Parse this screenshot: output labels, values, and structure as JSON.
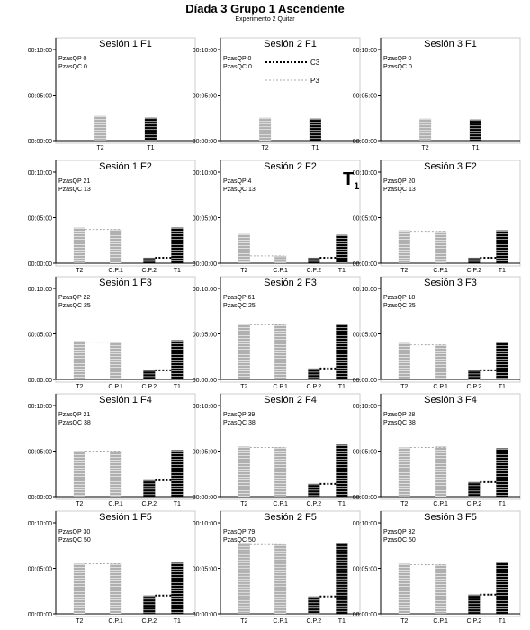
{
  "figure": {
    "title": "Díada 3 Grupo 1 Ascendente",
    "subtitle": "Experimento 2 Quitar",
    "corner_label": {
      "main": "T",
      "sub": "1"
    },
    "y_ticks": [
      "00:00:00",
      "00:05:00",
      "00:10:00"
    ],
    "legend": [
      {
        "label": "C3",
        "color": "#000000",
        "style": "dotted-bold"
      },
      {
        "label": "P3",
        "color": "#aaaaaa",
        "style": "dotted-light"
      }
    ],
    "colors": {
      "t2": "#b0b0b0",
      "t1": "#000000",
      "cp1": "#b0b0b0",
      "cp2": "#000000"
    }
  },
  "chart_data": [
    {
      "type": "bar",
      "title": "Sesión 1 F1",
      "stats": [
        "PzasQP 0",
        "PzasQC 0"
      ],
      "categories": [
        "T2",
        "T1"
      ],
      "ylim": [
        0,
        10
      ],
      "yunit": "minutes",
      "series": [
        {
          "name": "P3",
          "values": [
            2.7,
            null
          ]
        },
        {
          "name": "C3",
          "values": [
            null,
            2.5
          ]
        }
      ]
    },
    {
      "type": "bar",
      "title": "Sesión 2 F1",
      "stats": [
        "PzasQP 0",
        "PzasQC 0"
      ],
      "categories": [
        "T2",
        "T1"
      ],
      "ylim": [
        0,
        10
      ],
      "yunit": "minutes",
      "series": [
        {
          "name": "P3",
          "values": [
            2.5,
            null
          ]
        },
        {
          "name": "C3",
          "values": [
            null,
            2.4
          ]
        }
      ]
    },
    {
      "type": "bar",
      "title": "Sesión 3 F1",
      "stats": [
        "PzasQP 0",
        "PzasQC 0"
      ],
      "categories": [
        "T2",
        "T1"
      ],
      "ylim": [
        0,
        10
      ],
      "yunit": "minutes",
      "series": [
        {
          "name": "P3",
          "values": [
            2.4,
            null
          ]
        },
        {
          "name": "C3",
          "values": [
            null,
            2.3
          ]
        }
      ]
    },
    {
      "type": "bar",
      "title": "Sesión 1 F2",
      "stats": [
        "PzasQP 21",
        "PzasQC 13"
      ],
      "categories": [
        "T2",
        "C.P.1",
        "C.P.2",
        "T1"
      ],
      "ylim": [
        0,
        10
      ],
      "yunit": "minutes",
      "series": [
        {
          "name": "P3",
          "values": [
            3.9,
            3.7,
            null,
            null
          ]
        },
        {
          "name": "C3",
          "values": [
            null,
            null,
            0.6,
            3.9
          ]
        }
      ]
    },
    {
      "type": "bar",
      "title": "Sesión 2 F2",
      "stats": [
        "PzasQP 4",
        "PzasQC 13"
      ],
      "categories": [
        "T2",
        "C.P.1",
        "C.P.2",
        "T1"
      ],
      "ylim": [
        0,
        10
      ],
      "yunit": "minutes",
      "series": [
        {
          "name": "P3",
          "values": [
            3.2,
            0.8,
            null,
            null
          ]
        },
        {
          "name": "C3",
          "values": [
            null,
            null,
            0.6,
            3.1
          ]
        }
      ]
    },
    {
      "type": "bar",
      "title": "Sesión 3 F2",
      "stats": [
        "PzasQP 20",
        "PzasQC 13"
      ],
      "categories": [
        "T2",
        "C.P.1",
        "C.P.2",
        "T1"
      ],
      "ylim": [
        0,
        10
      ],
      "yunit": "minutes",
      "series": [
        {
          "name": "P3",
          "values": [
            3.6,
            3.5,
            null,
            null
          ]
        },
        {
          "name": "C3",
          "values": [
            null,
            null,
            0.6,
            3.6
          ]
        }
      ]
    },
    {
      "type": "bar",
      "title": "Sesión 1 F3",
      "stats": [
        "PzasQP 22",
        "PzasQC 25"
      ],
      "categories": [
        "T2",
        "C.P.1",
        "C.P.2",
        "T1"
      ],
      "ylim": [
        0,
        10
      ],
      "yunit": "minutes",
      "series": [
        {
          "name": "P3",
          "values": [
            4.2,
            4.1,
            null,
            null
          ]
        },
        {
          "name": "C3",
          "values": [
            null,
            null,
            1.0,
            4.3
          ]
        }
      ]
    },
    {
      "type": "bar",
      "title": "Sesión 2 F3",
      "stats": [
        "PzasQP 61",
        "PzasQC 25"
      ],
      "categories": [
        "T2",
        "C.P.1",
        "C.P.2",
        "T1"
      ],
      "ylim": [
        0,
        10
      ],
      "yunit": "minutes",
      "series": [
        {
          "name": "P3",
          "values": [
            6.1,
            6.0,
            null,
            null
          ]
        },
        {
          "name": "C3",
          "values": [
            null,
            null,
            1.2,
            6.1
          ]
        }
      ]
    },
    {
      "type": "bar",
      "title": "Sesión 3 F3",
      "stats": [
        "PzasQP 18",
        "PzasQC 25"
      ],
      "categories": [
        "T2",
        "C.P.1",
        "C.P.2",
        "T1"
      ],
      "ylim": [
        0,
        10
      ],
      "yunit": "minutes",
      "series": [
        {
          "name": "P3",
          "values": [
            4.0,
            3.8,
            null,
            null
          ]
        },
        {
          "name": "C3",
          "values": [
            null,
            null,
            1.0,
            4.1
          ]
        }
      ]
    },
    {
      "type": "bar",
      "title": "Sesión 1 F4",
      "stats": [
        "PzasQP 21",
        "PzasQC 38"
      ],
      "categories": [
        "T2",
        "C.P.1",
        "C.P.2",
        "T1"
      ],
      "ylim": [
        0,
        10
      ],
      "yunit": "minutes",
      "series": [
        {
          "name": "P3",
          "values": [
            5.0,
            5.0,
            null,
            null
          ]
        },
        {
          "name": "C3",
          "values": [
            null,
            null,
            1.8,
            5.1
          ]
        }
      ]
    },
    {
      "type": "bar",
      "title": "Sesión 2 F4",
      "stats": [
        "PzasQP 39",
        "PzasQC 38"
      ],
      "categories": [
        "T2",
        "C.P.1",
        "C.P.2",
        "T1"
      ],
      "ylim": [
        0,
        10
      ],
      "yunit": "minutes",
      "series": [
        {
          "name": "P3",
          "values": [
            5.5,
            5.4,
            null,
            null
          ]
        },
        {
          "name": "C3",
          "values": [
            null,
            null,
            1.4,
            5.7
          ]
        }
      ]
    },
    {
      "type": "bar",
      "title": "Sesión 3 F4",
      "stats": [
        "PzasQP 28",
        "PzasQC 38"
      ],
      "categories": [
        "T2",
        "C.P.1",
        "C.P.2",
        "T1"
      ],
      "ylim": [
        0,
        10
      ],
      "yunit": "minutes",
      "series": [
        {
          "name": "P3",
          "values": [
            5.4,
            5.5,
            null,
            null
          ]
        },
        {
          "name": "C3",
          "values": [
            null,
            null,
            1.6,
            5.3
          ]
        }
      ]
    },
    {
      "type": "bar",
      "title": "Sesión 1 F5",
      "stats": [
        "PzasQP 30",
        "PzasQC 50"
      ],
      "categories": [
        "T2",
        "C.P.1",
        "C.P.2",
        "T1"
      ],
      "ylim": [
        0,
        10
      ],
      "yunit": "minutes",
      "series": [
        {
          "name": "P3",
          "values": [
            5.5,
            5.5,
            null,
            null
          ]
        },
        {
          "name": "C3",
          "values": [
            null,
            null,
            2.0,
            5.6
          ]
        }
      ]
    },
    {
      "type": "bar",
      "title": "Sesión 2 F5",
      "stats": [
        "PzasQP 79",
        "PzasQC 50"
      ],
      "categories": [
        "T2",
        "C.P.1",
        "C.P.2",
        "T1"
      ],
      "ylim": [
        0,
        10
      ],
      "yunit": "minutes",
      "series": [
        {
          "name": "P3",
          "values": [
            7.8,
            7.6,
            null,
            null
          ]
        },
        {
          "name": "C3",
          "values": [
            null,
            null,
            1.9,
            7.8
          ]
        }
      ]
    },
    {
      "type": "bar",
      "title": "Sesión 3 F5",
      "stats": [
        "PzasQP 32",
        "PzasQC 50"
      ],
      "categories": [
        "T2",
        "C.P.1",
        "C.P.2",
        "T1"
      ],
      "ylim": [
        0,
        10
      ],
      "yunit": "minutes",
      "series": [
        {
          "name": "P3",
          "values": [
            5.5,
            5.4,
            null,
            null
          ]
        },
        {
          "name": "C3",
          "values": [
            null,
            null,
            2.1,
            5.7
          ]
        }
      ]
    }
  ]
}
